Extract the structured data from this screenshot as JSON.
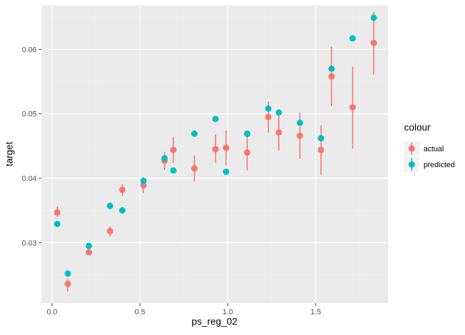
{
  "chart_data": {
    "type": "scatter",
    "xlabel": "ps_reg_02",
    "ylabel": "target",
    "xlim": [
      -0.0595,
      1.912
    ],
    "ylim": [
      0.0206,
      0.0668
    ],
    "x_ticks": [
      {
        "value": 0.0,
        "label": "0.0"
      },
      {
        "value": 0.5,
        "label": "0.5"
      },
      {
        "value": 1.0,
        "label": "1.0"
      },
      {
        "value": 1.5,
        "label": "1.5"
      }
    ],
    "y_ticks": [
      {
        "value": 0.03,
        "label": "0.03"
      },
      {
        "value": 0.04,
        "label": "0.04"
      },
      {
        "value": 0.05,
        "label": "0.05"
      },
      {
        "value": 0.06,
        "label": "0.06"
      }
    ],
    "grid": true,
    "legend": {
      "title": "colour",
      "position": "right"
    },
    "series": [
      {
        "name": "actual",
        "color": "#F8766D",
        "points": [
          {
            "x": 0.03,
            "y": 0.0347,
            "ymin": 0.034,
            "ymax": 0.0356
          },
          {
            "x": 0.09,
            "y": 0.0236,
            "ymin": 0.0224,
            "ymax": 0.0244
          },
          {
            "x": 0.21,
            "y": 0.0285,
            "ymin": 0.0282,
            "ymax": 0.0289
          },
          {
            "x": 0.33,
            "y": 0.0318,
            "ymin": 0.031,
            "ymax": 0.0325
          },
          {
            "x": 0.4,
            "y": 0.0382,
            "ymin": 0.0372,
            "ymax": 0.0391
          },
          {
            "x": 0.52,
            "y": 0.0389,
            "ymin": 0.0377,
            "ymax": 0.04
          },
          {
            "x": 0.64,
            "y": 0.0427,
            "ymin": 0.0413,
            "ymax": 0.0441
          },
          {
            "x": 0.69,
            "y": 0.0444,
            "ymin": 0.0424,
            "ymax": 0.0464
          },
          {
            "x": 0.81,
            "y": 0.0415,
            "ymin": 0.0395,
            "ymax": 0.0435
          },
          {
            "x": 0.93,
            "y": 0.0445,
            "ymin": 0.0424,
            "ymax": 0.0468
          },
          {
            "x": 0.99,
            "y": 0.0447,
            "ymin": 0.042,
            "ymax": 0.0474
          },
          {
            "x": 1.11,
            "y": 0.044,
            "ymin": 0.0412,
            "ymax": 0.0466
          },
          {
            "x": 1.23,
            "y": 0.0495,
            "ymin": 0.0471,
            "ymax": 0.0519
          },
          {
            "x": 1.29,
            "y": 0.0471,
            "ymin": 0.0443,
            "ymax": 0.05
          },
          {
            "x": 1.41,
            "y": 0.0466,
            "ymin": 0.043,
            "ymax": 0.0502
          },
          {
            "x": 1.53,
            "y": 0.0444,
            "ymin": 0.0406,
            "ymax": 0.0482
          },
          {
            "x": 1.59,
            "y": 0.0558,
            "ymin": 0.0512,
            "ymax": 0.0604
          },
          {
            "x": 1.71,
            "y": 0.051,
            "ymin": 0.0446,
            "ymax": 0.0573
          },
          {
            "x": 1.83,
            "y": 0.061,
            "ymin": 0.0561,
            "ymax": 0.0658
          }
        ]
      },
      {
        "name": "predicted",
        "color": "#00BFC4",
        "points": [
          {
            "x": 0.03,
            "y": 0.0329
          },
          {
            "x": 0.09,
            "y": 0.0252
          },
          {
            "x": 0.21,
            "y": 0.0295
          },
          {
            "x": 0.33,
            "y": 0.0357
          },
          {
            "x": 0.4,
            "y": 0.035
          },
          {
            "x": 0.52,
            "y": 0.0396
          },
          {
            "x": 0.64,
            "y": 0.0431
          },
          {
            "x": 0.69,
            "y": 0.0412
          },
          {
            "x": 0.81,
            "y": 0.0469
          },
          {
            "x": 0.93,
            "y": 0.0492
          },
          {
            "x": 0.99,
            "y": 0.041
          },
          {
            "x": 1.11,
            "y": 0.0469
          },
          {
            "x": 1.23,
            "y": 0.0508
          },
          {
            "x": 1.29,
            "y": 0.0502
          },
          {
            "x": 1.41,
            "y": 0.0486
          },
          {
            "x": 1.53,
            "y": 0.0462
          },
          {
            "x": 1.59,
            "y": 0.057
          },
          {
            "x": 1.71,
            "y": 0.0617
          },
          {
            "x": 1.83,
            "y": 0.0649
          }
        ]
      }
    ]
  }
}
